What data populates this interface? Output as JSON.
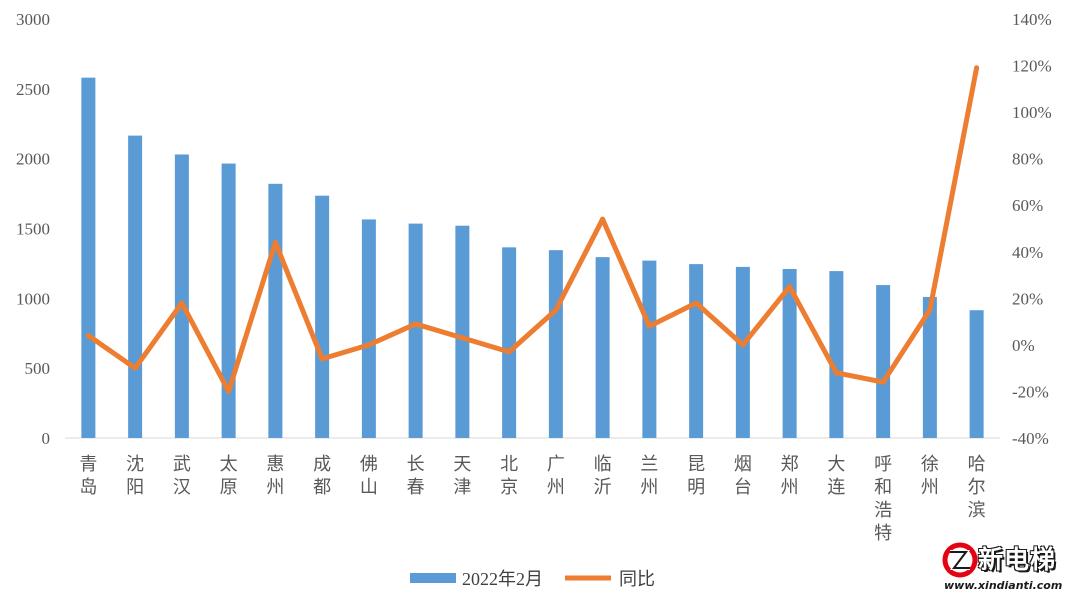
{
  "chart_data": {
    "type": "bar+line",
    "categories": [
      "青岛",
      "沈阳",
      "武汉",
      "太原",
      "惠州",
      "成都",
      "佛山",
      "长春",
      "天津",
      "北京",
      "广州",
      "临沂",
      "兰州",
      "昆明",
      "烟台",
      "郑州",
      "大连",
      "呼和浩特",
      "徐州",
      "哈尔滨"
    ],
    "series": [
      {
        "name": "2022年2月",
        "type": "bar",
        "axis": "left",
        "color": "#5b9bd5",
        "values": [
          2580,
          2165,
          2030,
          1965,
          1820,
          1735,
          1565,
          1535,
          1520,
          1365,
          1345,
          1295,
          1270,
          1245,
          1225,
          1210,
          1195,
          1095,
          1010,
          915
        ]
      },
      {
        "name": "同比",
        "type": "line",
        "axis": "right",
        "color": "#ed7d31",
        "values": [
          0.04,
          -0.1,
          0.18,
          -0.2,
          0.44,
          -0.06,
          0.0,
          0.09,
          0.03,
          -0.03,
          0.15,
          0.54,
          0.08,
          0.18,
          0.0,
          0.25,
          -0.12,
          -0.16,
          0.15,
          1.19
        ]
      }
    ],
    "y_left": {
      "min": 0,
      "max": 3000,
      "ticks": [
        "0",
        "500",
        "1000",
        "1500",
        "2000",
        "2500",
        "3000"
      ]
    },
    "y_right": {
      "min": -0.4,
      "max": 1.4,
      "ticks": [
        "-40%",
        "-20%",
        "0%",
        "20%",
        "40%",
        "60%",
        "80%",
        "100%",
        "120%",
        "140%"
      ]
    },
    "grid": false,
    "legend_position": "bottom"
  },
  "logo": {
    "name": "新电梯",
    "url": "www.xindianti.com"
  }
}
